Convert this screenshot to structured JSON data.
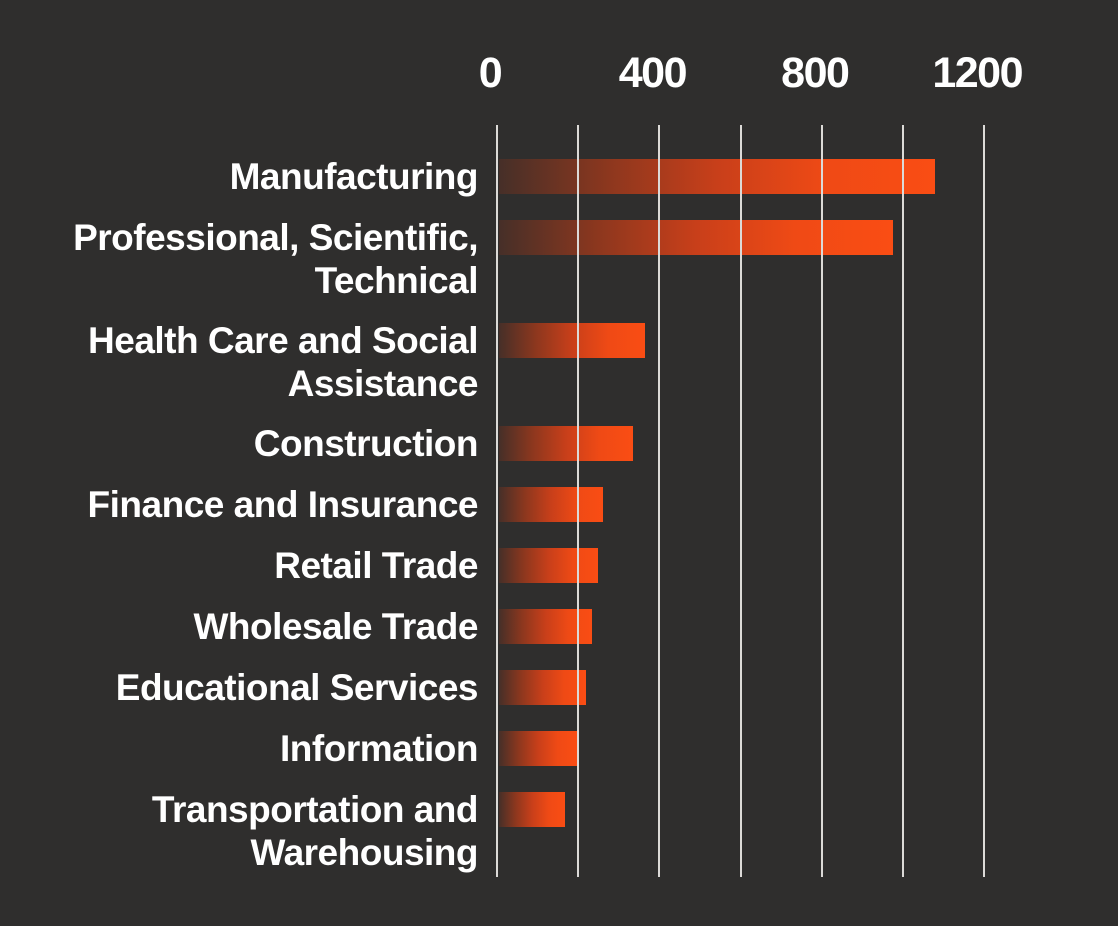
{
  "chart_data": {
    "type": "bar",
    "orientation": "horizontal",
    "title": "",
    "xlabel": "",
    "ylabel": "",
    "axis_position": "top",
    "xlim": [
      0,
      1200
    ],
    "grid": true,
    "gridline_interval": 200,
    "gridline_values": [
      0,
      200,
      400,
      600,
      800,
      1000,
      1200
    ],
    "x_ticks": {
      "values": [
        0,
        400,
        800,
        1200
      ],
      "labels": [
        "0",
        "400",
        "800",
        "1200"
      ]
    },
    "legend": "none",
    "categories": [
      "Manufacturing",
      "Professional, Scientific, Technical",
      "Health Care and Social Assistance",
      "Construction",
      "Finance and Insurance",
      "Retail Trade",
      "Wholesale Trade",
      "Educational Services",
      "Information",
      "Transportation and Warehousing"
    ],
    "label_lines": [
      [
        "Manufacturing"
      ],
      [
        "Professional, Scientific,",
        "Technical"
      ],
      [
        "Health Care and Social",
        "Assistance"
      ],
      [
        "Construction"
      ],
      [
        "Finance and Insurance"
      ],
      [
        "Retail Trade"
      ],
      [
        "Wholesale Trade"
      ],
      [
        "Educational Services"
      ],
      [
        "Information"
      ],
      [
        "Transportation and",
        "Warehousing"
      ]
    ],
    "values": [
      1080,
      975,
      365,
      335,
      260,
      248,
      233,
      218,
      198,
      168
    ],
    "colors": {
      "background": "#2f2e2d",
      "gridline": "#dcdad7",
      "text": "#ffffff",
      "bar_gradient": [
        "#462f28",
        "#8c371e",
        "#c83f1a",
        "#ef4a15",
        "#fa4d14"
      ]
    }
  }
}
